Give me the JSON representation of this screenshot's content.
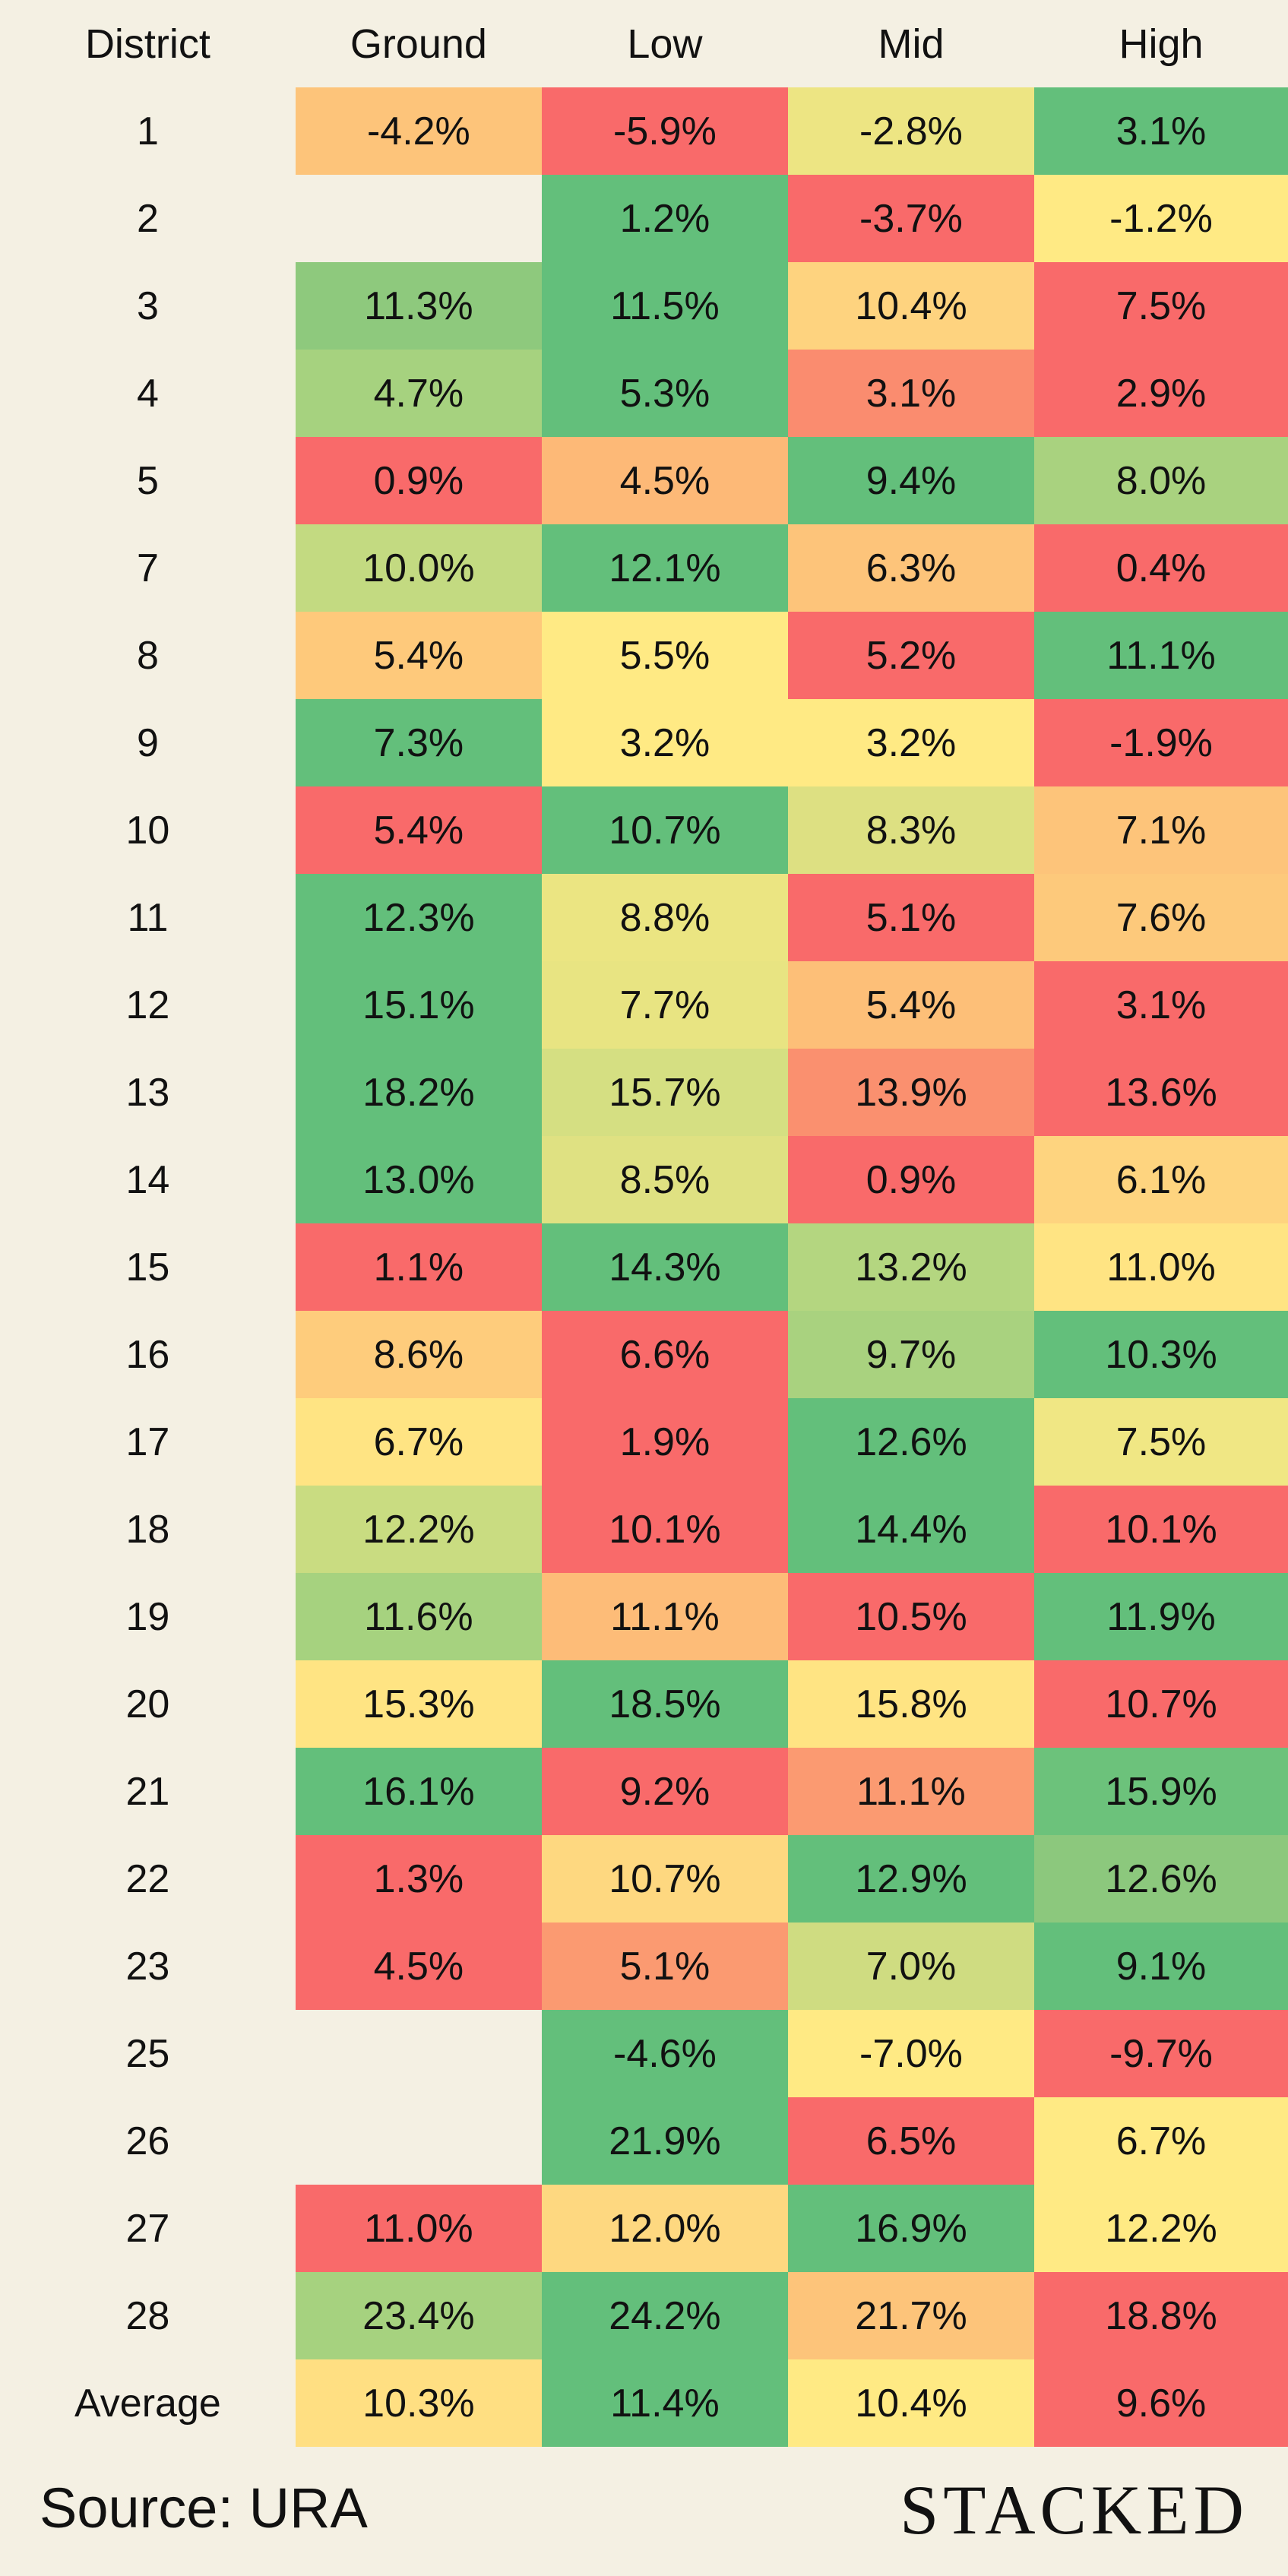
{
  "chart_data": {
    "type": "table",
    "columns": [
      "District",
      "Ground",
      "Low",
      "Mid",
      "High"
    ],
    "rows": [
      {
        "district": "1",
        "values": [
          "-4.2%",
          "-5.9%",
          "-2.8%",
          "3.1%"
        ],
        "colors": [
          "#fdc47a",
          "#f96a6a",
          "#ede583",
          "#63bf7b"
        ]
      },
      {
        "district": "2",
        "values": [
          "",
          "1.2%",
          "-3.7%",
          "-1.2%"
        ],
        "colors": [
          "",
          "#63bf7b",
          "#f96a6a",
          "#ffea84"
        ]
      },
      {
        "district": "3",
        "values": [
          "11.3%",
          "11.5%",
          "10.4%",
          "7.5%"
        ],
        "colors": [
          "#8ec97d",
          "#63bf7b",
          "#fed37f",
          "#f96a6a"
        ]
      },
      {
        "district": "4",
        "values": [
          "4.7%",
          "5.3%",
          "3.1%",
          "2.9%"
        ],
        "colors": [
          "#a6d27f",
          "#63bf7b",
          "#fa8c6f",
          "#f96a6a"
        ]
      },
      {
        "district": "5",
        "values": [
          "0.9%",
          "4.5%",
          "9.4%",
          "8.0%"
        ],
        "colors": [
          "#f96a6a",
          "#fdb977",
          "#63bf7b",
          "#a9d27f"
        ]
      },
      {
        "district": "7",
        "values": [
          "10.0%",
          "12.1%",
          "6.3%",
          "0.4%"
        ],
        "colors": [
          "#c3da81",
          "#63bf7b",
          "#fdc47a",
          "#f96a6a"
        ]
      },
      {
        "district": "8",
        "values": [
          "5.4%",
          "5.5%",
          "5.2%",
          "11.1%"
        ],
        "colors": [
          "#fec97b",
          "#ffea84",
          "#f96a6a",
          "#63bf7b"
        ]
      },
      {
        "district": "9",
        "values": [
          "7.3%",
          "3.2%",
          "3.2%",
          "-1.9%"
        ],
        "colors": [
          "#63bf7b",
          "#ffea84",
          "#ffea84",
          "#f96a6a"
        ]
      },
      {
        "district": "10",
        "values": [
          "5.4%",
          "10.7%",
          "8.3%",
          "7.1%"
        ],
        "colors": [
          "#f96a6a",
          "#63bf7b",
          "#dde082",
          "#fdc47a"
        ]
      },
      {
        "district": "11",
        "values": [
          "12.3%",
          "8.8%",
          "5.1%",
          "7.6%"
        ],
        "colors": [
          "#63bf7b",
          "#ebe582",
          "#f96a6a",
          "#fdc97b"
        ]
      },
      {
        "district": "12",
        "values": [
          "15.1%",
          "7.7%",
          "5.4%",
          "3.1%"
        ],
        "colors": [
          "#63bf7b",
          "#e8e482",
          "#fdbf78",
          "#f96a6a"
        ]
      },
      {
        "district": "13",
        "values": [
          "18.2%",
          "15.7%",
          "13.9%",
          "13.6%"
        ],
        "colors": [
          "#63bf7b",
          "#d5df82",
          "#fa906f",
          "#f96a6a"
        ]
      },
      {
        "district": "14",
        "values": [
          "13.0%",
          "8.5%",
          "0.9%",
          "6.1%"
        ],
        "colors": [
          "#63bf7b",
          "#dfe182",
          "#f96a6a",
          "#fed47f"
        ]
      },
      {
        "district": "15",
        "values": [
          "1.1%",
          "14.3%",
          "13.2%",
          "11.0%"
        ],
        "colors": [
          "#f96a6a",
          "#63bf7b",
          "#b4d680",
          "#ffe483"
        ]
      },
      {
        "district": "16",
        "values": [
          "8.6%",
          "6.6%",
          "9.7%",
          "10.3%"
        ],
        "colors": [
          "#fecc7c",
          "#f96a6a",
          "#a9d27f",
          "#63bf7b"
        ]
      },
      {
        "district": "17",
        "values": [
          "6.7%",
          "1.9%",
          "12.6%",
          "7.5%"
        ],
        "colors": [
          "#ffe483",
          "#f96a6a",
          "#63bf7b",
          "#f0e784"
        ]
      },
      {
        "district": "18",
        "values": [
          "12.2%",
          "10.1%",
          "14.4%",
          "10.1%"
        ],
        "colors": [
          "#c9dc81",
          "#f96a6a",
          "#63bf7b",
          "#f96a6a"
        ]
      },
      {
        "district": "19",
        "values": [
          "11.6%",
          "11.1%",
          "10.5%",
          "11.9%"
        ],
        "colors": [
          "#a6d27f",
          "#fdbc78",
          "#f96a6a",
          "#63bf7b"
        ]
      },
      {
        "district": "20",
        "values": [
          "15.3%",
          "18.5%",
          "15.8%",
          "10.7%"
        ],
        "colors": [
          "#ffe483",
          "#63bf7b",
          "#ffe483",
          "#f96a6a"
        ]
      },
      {
        "district": "21",
        "values": [
          "16.1%",
          "9.2%",
          "11.1%",
          "15.9%"
        ],
        "colors": [
          "#63bf7b",
          "#f96a6a",
          "#fb9a71",
          "#6cc27b"
        ]
      },
      {
        "district": "22",
        "values": [
          "1.3%",
          "10.7%",
          "12.9%",
          "12.6%"
        ],
        "colors": [
          "#f96a6a",
          "#fed880",
          "#63bf7b",
          "#8cc87d"
        ]
      },
      {
        "district": "23",
        "values": [
          "4.5%",
          "5.1%",
          "7.0%",
          "9.1%"
        ],
        "colors": [
          "#f96a6a",
          "#fb9a71",
          "#cfdc81",
          "#63bf7b"
        ]
      },
      {
        "district": "25",
        "values": [
          "",
          "-4.6%",
          "-7.0%",
          "-9.7%"
        ],
        "colors": [
          "",
          "#63bf7b",
          "#ffea84",
          "#f96a6a"
        ]
      },
      {
        "district": "26",
        "values": [
          "",
          "21.9%",
          "6.5%",
          "6.7%"
        ],
        "colors": [
          "",
          "#63bf7b",
          "#f96a6a",
          "#ffea84"
        ]
      },
      {
        "district": "27",
        "values": [
          "11.0%",
          "12.0%",
          "16.9%",
          "12.2%"
        ],
        "colors": [
          "#f96a6a",
          "#fed880",
          "#63bf7b",
          "#ffea84"
        ]
      },
      {
        "district": "28",
        "values": [
          "23.4%",
          "24.2%",
          "21.7%",
          "18.8%"
        ],
        "colors": [
          "#a6d27f",
          "#63bf7b",
          "#fdc47a",
          "#f96a6a"
        ]
      },
      {
        "district": "Average",
        "values": [
          "10.3%",
          "11.4%",
          "10.4%",
          "9.6%"
        ],
        "colors": [
          "#ffdf82",
          "#63bf7b",
          "#ffea84",
          "#f96a6a"
        ]
      }
    ]
  },
  "footer": {
    "source": "Source: URA",
    "brand": "STACKED"
  }
}
